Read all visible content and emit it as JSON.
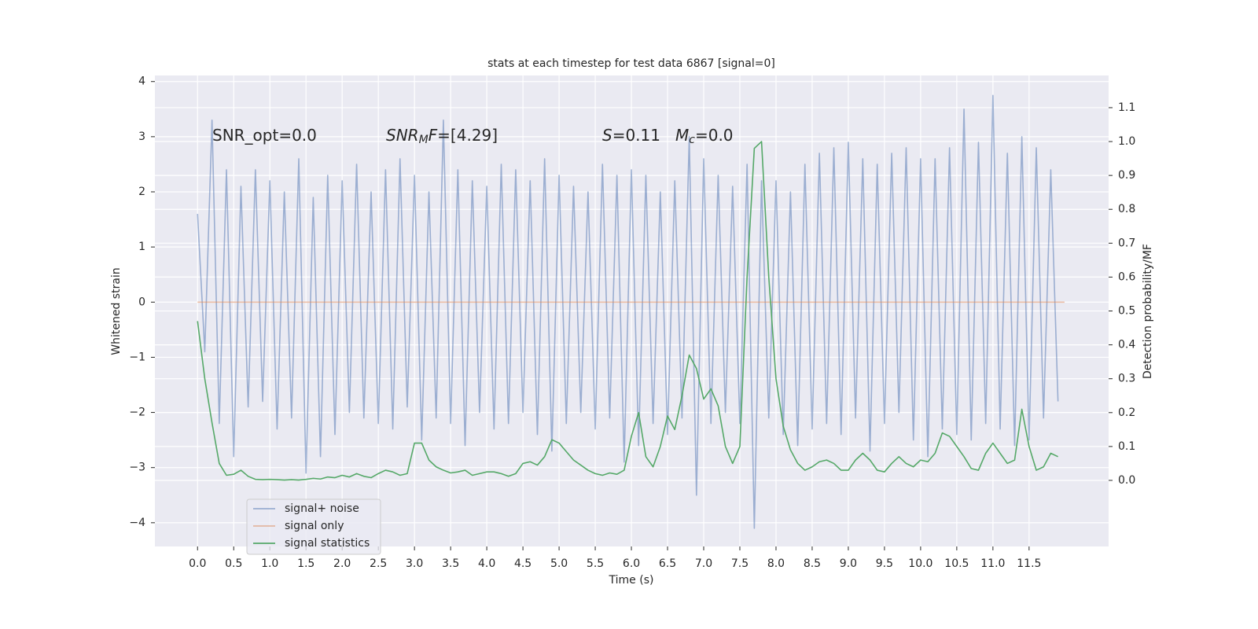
{
  "chart_data": {
    "type": "line",
    "title": "stats at each timestep for test data 6867 [signal=0]",
    "xlabel": "Time (s)",
    "ylabel": "Whitened strain",
    "y2label": "Detection probability/MF",
    "x": [
      0,
      0.1,
      0.2,
      0.3,
      0.4,
      0.5,
      0.6,
      0.7,
      0.8,
      0.9,
      1,
      1.1,
      1.2,
      1.3,
      1.4,
      1.5,
      1.6,
      1.7,
      1.8,
      1.9,
      2,
      2.1,
      2.2,
      2.3,
      2.4,
      2.5,
      2.6,
      2.7,
      2.8,
      2.9,
      3,
      3.1,
      3.2,
      3.3,
      3.4,
      3.5,
      3.6,
      3.7,
      3.8,
      3.9,
      4,
      4.1,
      4.2,
      4.3,
      4.4,
      4.5,
      4.6,
      4.7,
      4.8,
      4.9,
      5,
      5.1,
      5.2,
      5.3,
      5.4,
      5.5,
      5.6,
      5.7,
      5.8,
      5.9,
      6,
      6.1,
      6.2,
      6.3,
      6.4,
      6.5,
      6.6,
      6.7,
      6.8,
      6.9,
      7,
      7.1,
      7.2,
      7.3,
      7.4,
      7.5,
      7.6,
      7.7,
      7.8,
      7.9,
      8,
      8.1,
      8.2,
      8.3,
      8.4,
      8.5,
      8.6,
      8.7,
      8.8,
      8.9,
      9,
      9.1,
      9.2,
      9.3,
      9.4,
      9.5,
      9.6,
      9.7,
      9.8,
      9.9,
      10,
      10.1,
      10.2,
      10.3,
      10.4,
      10.5,
      10.6,
      10.7,
      10.8,
      10.9,
      11,
      11.1,
      11.2,
      11.3,
      11.4,
      11.5,
      11.6,
      11.7,
      11.8,
      11.9
    ],
    "series": [
      {
        "name": "signal+ noise",
        "color": "#4c72b0",
        "alpha": 0.5,
        "axis": "y",
        "values": [
          1.6,
          -0.9,
          3.3,
          -2.2,
          2.4,
          -2.8,
          2.1,
          -1.9,
          2.4,
          -1.8,
          2.2,
          -2.3,
          2.0,
          -2.1,
          2.6,
          -3.1,
          1.9,
          -2.8,
          2.3,
          -2.4,
          2.2,
          -2.0,
          2.5,
          -2.1,
          2.0,
          -2.2,
          2.4,
          -2.3,
          2.6,
          -1.9,
          2.3,
          -2.5,
          2.0,
          -2.1,
          3.3,
          -2.2,
          2.4,
          -2.6,
          2.2,
          -2.0,
          2.1,
          -2.3,
          2.5,
          -2.2,
          2.4,
          -2.0,
          2.2,
          -2.4,
          2.6,
          -2.7,
          2.3,
          -2.2,
          2.1,
          -2.0,
          2.0,
          -2.3,
          2.5,
          -2.1,
          2.3,
          -2.9,
          2.4,
          -2.6,
          2.3,
          -2.2,
          2.0,
          -2.4,
          2.2,
          -2.1,
          3.0,
          -3.5,
          2.6,
          -2.2,
          2.3,
          -2.0,
          2.1,
          -2.2,
          2.5,
          -4.1,
          2.2,
          -2.1,
          2.2,
          -2.4,
          2.0,
          -2.6,
          2.5,
          -2.3,
          2.7,
          -2.2,
          2.8,
          -2.4,
          2.9,
          -2.1,
          2.6,
          -2.7,
          2.5,
          -2.2,
          2.7,
          -2.0,
          2.8,
          -2.5,
          2.6,
          -2.8,
          2.6,
          -2.3,
          2.8,
          -2.4,
          3.5,
          -2.5,
          2.9,
          -2.2,
          3.75,
          -2.3,
          2.7,
          -2.6,
          3.0,
          -2.5,
          2.8,
          -2.1,
          2.4,
          -1.8
        ]
      },
      {
        "name": "signal only",
        "color": "#dd8452",
        "alpha": 0.5,
        "axis": "y",
        "x": [
          0,
          11.99
        ],
        "values": [
          0,
          0
        ]
      },
      {
        "name": "signal statistics",
        "color": "#55a868",
        "alpha": 1,
        "axis": "y2",
        "values": [
          0.47,
          0.3,
          0.17,
          0.05,
          0.015,
          0.018,
          0.03,
          0.012,
          0.003,
          0.002,
          0.003,
          0.002,
          0.001,
          0.002,
          0.001,
          0.003,
          0.006,
          0.004,
          0.01,
          0.008,
          0.015,
          0.01,
          0.02,
          0.012,
          0.008,
          0.02,
          0.03,
          0.025,
          0.015,
          0.02,
          0.11,
          0.11,
          0.06,
          0.04,
          0.03,
          0.022,
          0.025,
          0.03,
          0.015,
          0.02,
          0.025,
          0.025,
          0.02,
          0.012,
          0.02,
          0.05,
          0.055,
          0.045,
          0.07,
          0.12,
          0.11,
          0.085,
          0.06,
          0.045,
          0.03,
          0.02,
          0.015,
          0.022,
          0.018,
          0.03,
          0.13,
          0.2,
          0.07,
          0.04,
          0.1,
          0.19,
          0.15,
          0.25,
          0.37,
          0.33,
          0.24,
          0.27,
          0.22,
          0.1,
          0.05,
          0.1,
          0.6,
          0.98,
          1.0,
          0.6,
          0.3,
          0.16,
          0.09,
          0.05,
          0.03,
          0.04,
          0.055,
          0.06,
          0.05,
          0.03,
          0.03,
          0.06,
          0.08,
          0.06,
          0.03,
          0.025,
          0.05,
          0.07,
          0.05,
          0.04,
          0.06,
          0.055,
          0.08,
          0.14,
          0.13,
          0.1,
          0.07,
          0.035,
          0.03,
          0.08,
          0.11,
          0.08,
          0.05,
          0.06,
          0.21,
          0.1,
          0.03,
          0.04,
          0.08,
          0.07
        ]
      }
    ],
    "xlim": [
      -0.59,
      12.6
    ],
    "xticks": [
      {
        "value": 0,
        "label": "0.0"
      },
      0.5,
      {
        "value": 1,
        "label": "1.0"
      },
      1.5,
      {
        "value": 2,
        "label": "2.0"
      },
      2.5,
      {
        "value": 3,
        "label": "3.0"
      },
      3.5,
      {
        "value": 4,
        "label": "4.0"
      },
      4.5,
      {
        "value": 5,
        "label": "5.0"
      },
      5.5,
      {
        "value": 6,
        "label": "6.0"
      },
      6.5,
      {
        "value": 7,
        "label": "7.0"
      },
      7.5,
      {
        "value": 8,
        "label": "8.0"
      },
      8.5,
      {
        "value": 9,
        "label": "9.0"
      },
      9.5,
      {
        "value": 10,
        "label": "10.0"
      },
      10.5,
      {
        "value": 11,
        "label": "11.0"
      },
      11.5
    ],
    "ylim": [
      -4.43,
      4.11
    ],
    "yticks": [
      {
        "value": -4,
        "label": "−4"
      },
      {
        "value": -3,
        "label": "−3"
      },
      {
        "value": -2,
        "label": "−2"
      },
      {
        "value": -1,
        "label": "−1"
      },
      0,
      1,
      2,
      3,
      4
    ],
    "y2lim": [
      -0.195,
      1.195
    ],
    "y2ticks": [
      {
        "value": 0,
        "label": "0.0"
      },
      0.1,
      0.2,
      0.3,
      0.4,
      0.5,
      0.6,
      0.7,
      0.8,
      0.9,
      {
        "value": 1,
        "label": "1.0"
      },
      1.1
    ],
    "grid": true,
    "legend": "lower left",
    "annotations": [
      [
        "SNR_opt=0.0"
      ],
      [
        "SNR",
        "M",
        "F",
        "=[4.29]"
      ],
      [
        "S",
        "=0.11"
      ],
      [
        "M",
        "c",
        "=0.0"
      ]
    ]
  }
}
